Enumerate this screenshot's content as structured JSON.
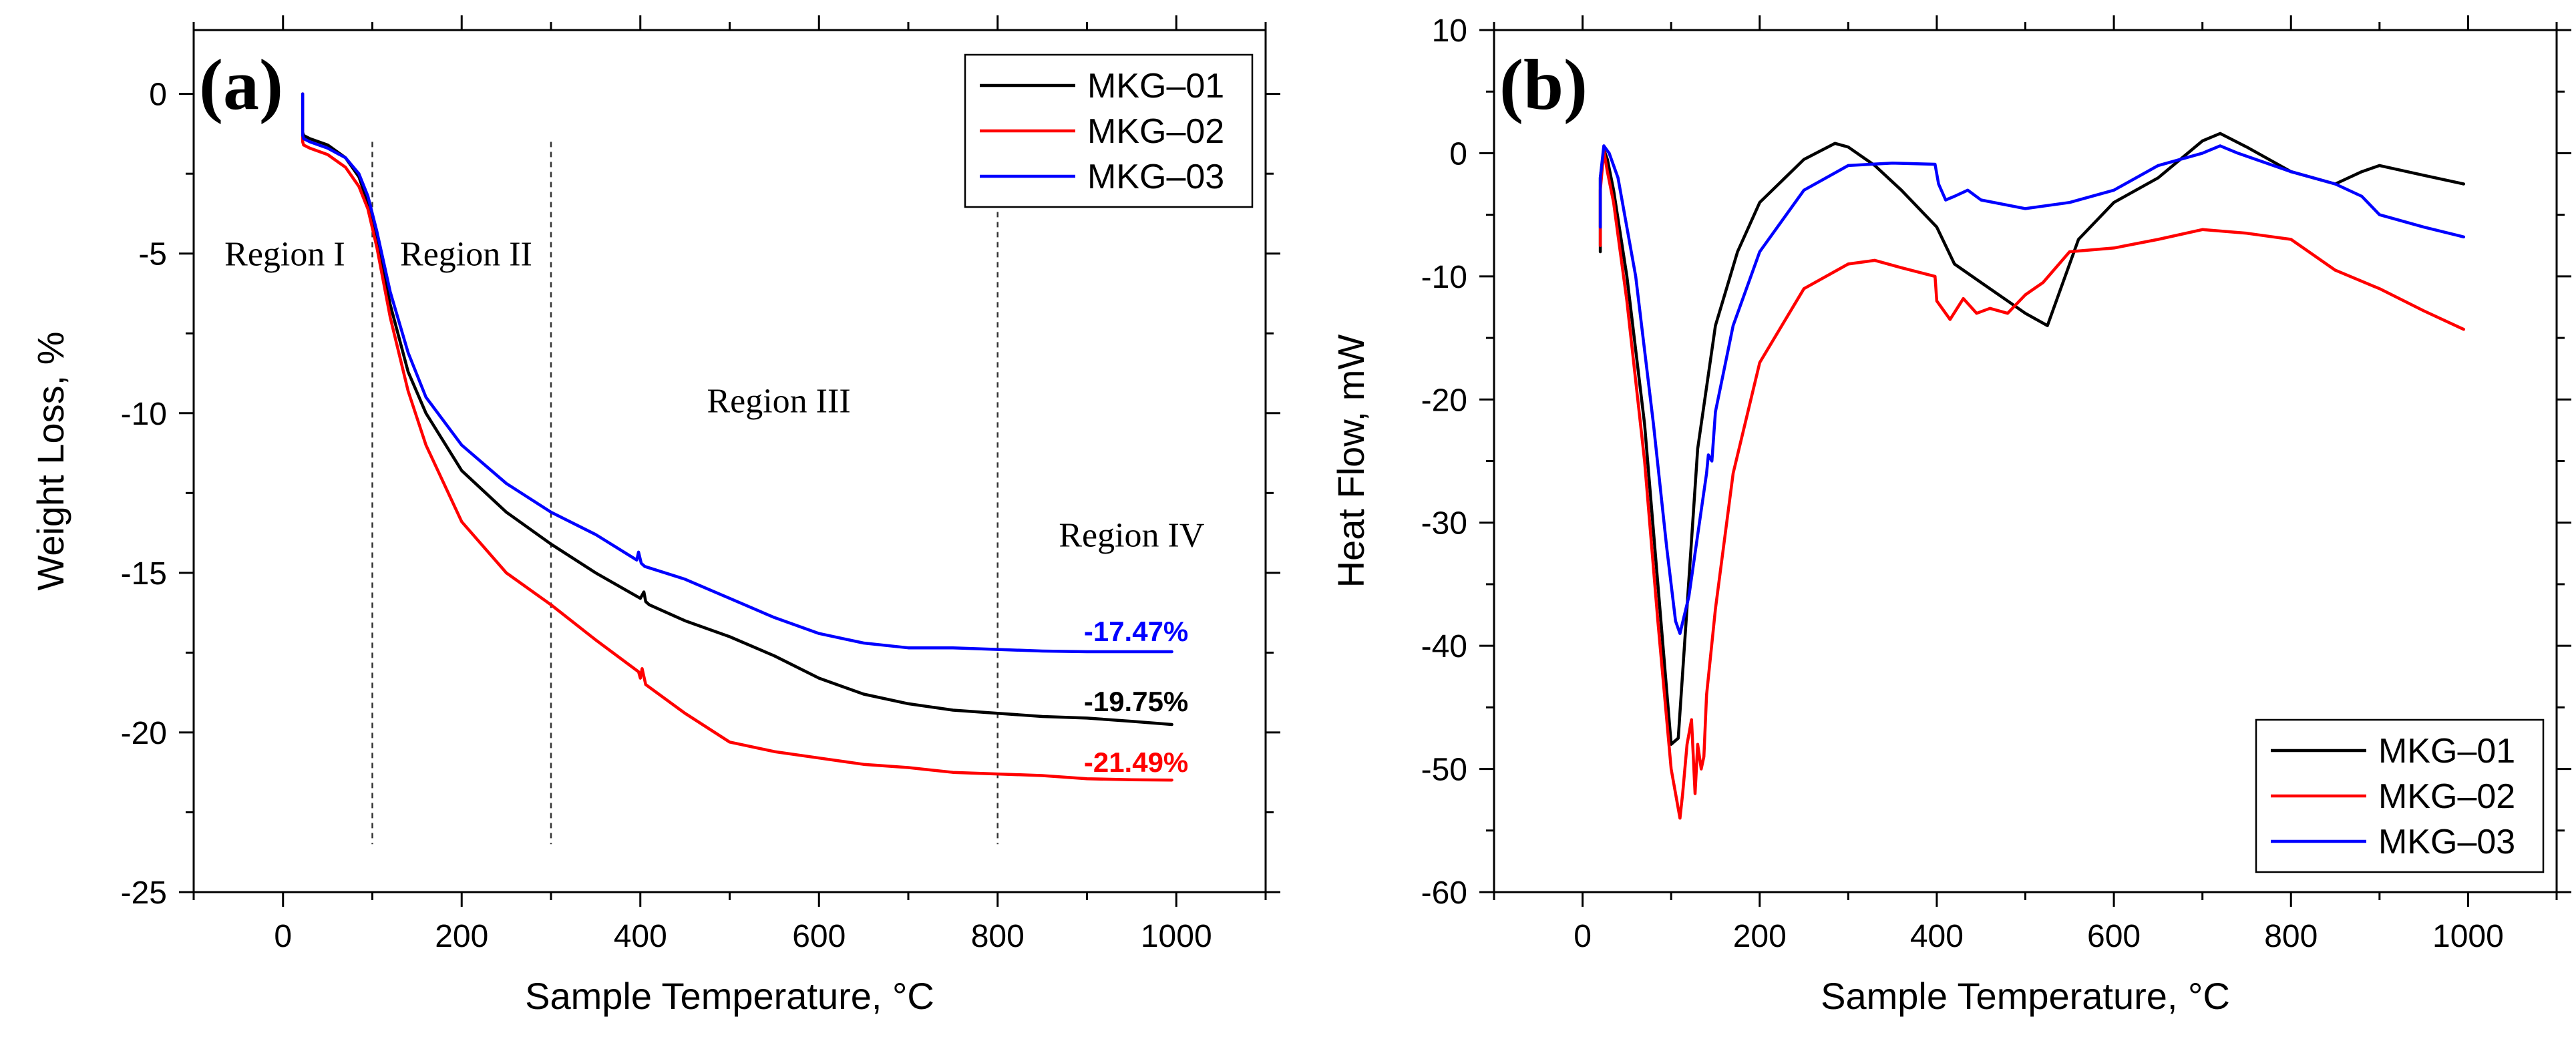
{
  "chart_data": [
    {
      "type": "line",
      "panel_label": "(a)",
      "xlabel": "Sample Temperature, °C",
      "ylabel": "Weight Loss, %",
      "xlim": [
        -100,
        1100
      ],
      "ylim": [
        -25,
        2
      ],
      "xticks": [
        0,
        200,
        400,
        600,
        800,
        1000
      ],
      "xtick_labels": [
        "0",
        "200",
        "400",
        "600",
        "800",
        "1000"
      ],
      "yticks": [
        0,
        -5,
        -10,
        -15,
        -20,
        -25
      ],
      "ytick_labels": [
        "0",
        "-5",
        "-10",
        "-15",
        "-20",
        "-25"
      ],
      "legend": "top-right",
      "region_dividers": [
        100,
        300,
        800
      ],
      "regions": [
        {
          "label": "Region I",
          "x": 2,
          "y": -5
        },
        {
          "label": "Region II",
          "x": 205,
          "y": -5
        },
        {
          "label": "Region III",
          "x": 555,
          "y": -9.6
        },
        {
          "label": "Region IV",
          "x": 950,
          "y": -13.8
        }
      ],
      "end_labels": [
        {
          "text": "-17.47%",
          "color": "#0000ff",
          "x": 955,
          "y": -16.8
        },
        {
          "text": "-19.75%",
          "color": "#000000",
          "x": 955,
          "y": -19.0
        },
        {
          "text": "-21.49%",
          "color": "#ff0000",
          "x": 955,
          "y": -20.9
        }
      ],
      "series": [
        {
          "name": "MKG–01",
          "color": "#000000",
          "x": [
            22,
            22,
            23,
            30,
            50,
            70,
            85,
            95,
            105,
            120,
            140,
            160,
            200,
            250,
            300,
            350,
            400,
            404,
            406,
            410,
            450,
            500,
            550,
            600,
            650,
            700,
            750,
            800,
            850,
            900,
            950,
            995
          ],
          "y": [
            0,
            -1.2,
            -1.3,
            -1.4,
            -1.6,
            -2.0,
            -2.6,
            -3.4,
            -4.6,
            -6.6,
            -8.7,
            -10.0,
            -11.8,
            -13.1,
            -14.1,
            -15.0,
            -15.8,
            -15.6,
            -15.9,
            -16.0,
            -16.5,
            -17.0,
            -17.6,
            -18.3,
            -18.8,
            -19.1,
            -19.3,
            -19.4,
            -19.5,
            -19.55,
            -19.65,
            -19.75
          ]
        },
        {
          "name": "MKG–02",
          "color": "#ff0000",
          "x": [
            22,
            22,
            23,
            30,
            50,
            70,
            85,
            95,
            105,
            120,
            140,
            160,
            200,
            250,
            300,
            350,
            398,
            400,
            402,
            406,
            450,
            500,
            550,
            600,
            650,
            700,
            750,
            800,
            850,
            900,
            950,
            995
          ],
          "y": [
            0,
            -1.5,
            -1.6,
            -1.7,
            -1.9,
            -2.3,
            -2.9,
            -3.6,
            -4.8,
            -7.0,
            -9.3,
            -11.0,
            -13.4,
            -15.0,
            -16.0,
            -17.1,
            -18.1,
            -18.3,
            -18.0,
            -18.5,
            -19.4,
            -20.3,
            -20.6,
            -20.8,
            -21.0,
            -21.1,
            -21.25,
            -21.3,
            -21.35,
            -21.45,
            -21.48,
            -21.49
          ]
        },
        {
          "name": "MKG–03",
          "color": "#0000ff",
          "x": [
            22,
            22,
            23,
            30,
            50,
            70,
            85,
            95,
            105,
            120,
            140,
            160,
            200,
            250,
            300,
            350,
            396,
            398,
            401,
            405,
            450,
            500,
            550,
            600,
            650,
            700,
            750,
            800,
            850,
            900,
            950,
            995
          ],
          "y": [
            0,
            -1.3,
            -1.4,
            -1.5,
            -1.7,
            -2.0,
            -2.5,
            -3.2,
            -4.3,
            -6.2,
            -8.1,
            -9.5,
            -11.0,
            -12.2,
            -13.1,
            -13.8,
            -14.6,
            -14.35,
            -14.7,
            -14.8,
            -15.2,
            -15.8,
            -16.4,
            -16.9,
            -17.2,
            -17.35,
            -17.35,
            -17.4,
            -17.45,
            -17.47,
            -17.47,
            -17.47
          ]
        }
      ]
    },
    {
      "type": "line",
      "panel_label": "(b)",
      "xlabel": "Sample Temperature, °C",
      "ylabel": "Heat Flow, mW",
      "xlim": [
        -100,
        1100
      ],
      "ylim": [
        -60,
        10
      ],
      "xticks": [
        0,
        200,
        400,
        600,
        800,
        1000
      ],
      "xtick_labels": [
        "0",
        "200",
        "400",
        "600",
        "800",
        "1000"
      ],
      "yticks": [
        10,
        0,
        -10,
        -20,
        -30,
        -40,
        -50,
        -60
      ],
      "ytick_labels": [
        "10",
        "0",
        "-10",
        "-20",
        "-30",
        "-40",
        "-50",
        "-60"
      ],
      "legend": "bottom-right",
      "series": [
        {
          "name": "MKG–01",
          "color": "#000000",
          "x": [
            20,
            20,
            24,
            28,
            35,
            50,
            70,
            85,
            100,
            108,
            115,
            130,
            150,
            175,
            200,
            250,
            285,
            300,
            330,
            360,
            400,
            420,
            450,
            480,
            500,
            525,
            540,
            560,
            600,
            650,
            700,
            720,
            750,
            800,
            850,
            880,
            900,
            950,
            995
          ],
          "y": [
            -8,
            -2,
            0.3,
            -0.5,
            -3,
            -10,
            -22,
            -35,
            -48,
            -47.5,
            -40,
            -24,
            -14,
            -8,
            -4,
            -0.5,
            0.8,
            0.5,
            -1,
            -3,
            -6,
            -9,
            -10.5,
            -12,
            -13,
            -14,
            -11,
            -7,
            -4,
            -2,
            1,
            1.6,
            0.5,
            -1.5,
            -2.5,
            -1.5,
            -1,
            -1.8,
            -2.5
          ]
        },
        {
          "name": "MKG–02",
          "color": "#ff0000",
          "x": [
            20,
            20,
            24,
            28,
            35,
            50,
            70,
            85,
            100,
            110,
            113,
            118,
            123,
            127,
            130,
            134,
            137,
            140,
            150,
            170,
            200,
            250,
            300,
            330,
            360,
            398,
            400,
            415,
            430,
            445,
            460,
            480,
            500,
            520,
            550,
            600,
            650,
            700,
            750,
            780,
            800,
            850,
            900,
            950,
            995
          ],
          "y": [
            -7.5,
            -3,
            0.2,
            -1.5,
            -4,
            -12,
            -25,
            -38,
            -50,
            -54,
            -52,
            -48,
            -46,
            -52,
            -48,
            -50,
            -49,
            -44,
            -37,
            -26,
            -17,
            -11,
            -9,
            -8.7,
            -9.3,
            -10,
            -12,
            -13.5,
            -11.8,
            -13,
            -12.6,
            -13,
            -11.5,
            -10.5,
            -8,
            -7.7,
            -7,
            -6.2,
            -6.5,
            -6.8,
            -7,
            -9.5,
            -11,
            -12.8,
            -14.3
          ]
        },
        {
          "name": "MKG–03",
          "color": "#0000ff",
          "x": [
            20,
            20,
            24,
            30,
            40,
            60,
            80,
            95,
            105,
            110,
            120,
            130,
            140,
            142,
            146,
            150,
            170,
            200,
            250,
            300,
            350,
            398,
            402,
            410,
            420,
            435,
            450,
            500,
            550,
            600,
            650,
            700,
            720,
            740,
            800,
            850,
            880,
            900,
            950,
            995
          ],
          "y": [
            -6,
            -2,
            0.6,
            0,
            -2,
            -10,
            -22,
            -32,
            -38,
            -39,
            -36,
            -31,
            -26,
            -24.5,
            -25,
            -21,
            -14,
            -8,
            -3,
            -1,
            -0.8,
            -0.9,
            -2.5,
            -3.8,
            -3.5,
            -3,
            -3.8,
            -4.5,
            -4,
            -3,
            -1,
            0,
            0.6,
            0,
            -1.5,
            -2.5,
            -3.5,
            -5,
            -6,
            -6.8
          ]
        }
      ]
    }
  ]
}
